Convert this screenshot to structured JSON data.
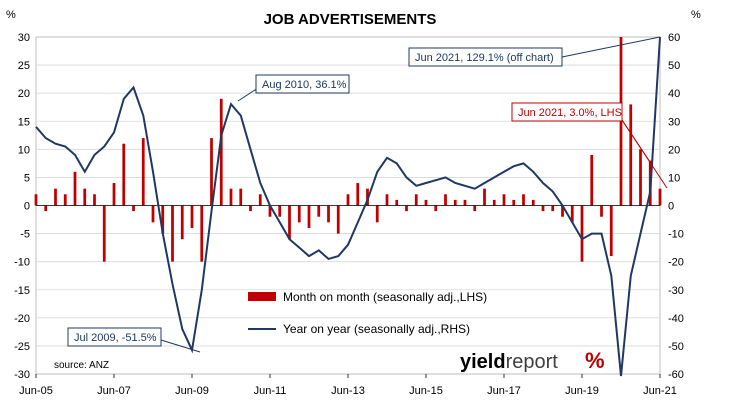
{
  "chart_data": {
    "type": "bar+line",
    "title": "JOB ADVERTISEMENTS",
    "left_axis_unit": "%",
    "right_axis_unit": "%",
    "left_axis": {
      "min": -30,
      "max": 30,
      "ticks": [
        30,
        25,
        20,
        15,
        10,
        5,
        0,
        -5,
        -10,
        -15,
        -20,
        -25,
        -30
      ]
    },
    "right_axis": {
      "min": -60,
      "max": 60,
      "ticks": [
        60,
        50,
        40,
        30,
        20,
        10,
        0,
        -10,
        -20,
        -30,
        -40,
        -50,
        -60
      ]
    },
    "x_axis": {
      "start": "2005-06",
      "end": "2021-06",
      "tick_labels": [
        "Jun-05",
        "Jun-07",
        "Jun-09",
        "Jun-11",
        "Jun-13",
        "Jun-15",
        "Jun-17",
        "Jun-19",
        "Jun-21"
      ]
    },
    "series": [
      {
        "name": "Month on month (seasonally adj.,LHS)",
        "kind": "bar",
        "axis": "left",
        "color": "#c00000"
      },
      {
        "name": "Year on year (seasonally adj.,RHS)",
        "kind": "line",
        "axis": "right",
        "color": "#1f3864"
      }
    ],
    "mom_points": [
      [
        "2005-06",
        2
      ],
      [
        "2005-09",
        -1
      ],
      [
        "2005-12",
        3
      ],
      [
        "2006-03",
        2
      ],
      [
        "2006-06",
        6
      ],
      [
        "2006-09",
        3
      ],
      [
        "2006-12",
        2
      ],
      [
        "2007-03",
        -10
      ],
      [
        "2007-06",
        4
      ],
      [
        "2007-09",
        11
      ],
      [
        "2007-12",
        -1
      ],
      [
        "2008-03",
        12
      ],
      [
        "2008-06",
        -3
      ],
      [
        "2008-09",
        -5
      ],
      [
        "2008-12",
        -10
      ],
      [
        "2009-03",
        -6
      ],
      [
        "2009-06",
        -4
      ],
      [
        "2009-09",
        -10
      ],
      [
        "2009-12",
        12
      ],
      [
        "2010-03",
        19
      ],
      [
        "2010-06",
        3
      ],
      [
        "2010-09",
        3
      ],
      [
        "2010-12",
        -1
      ],
      [
        "2011-03",
        2
      ],
      [
        "2011-06",
        -2
      ],
      [
        "2011-09",
        -2
      ],
      [
        "2011-12",
        -6
      ],
      [
        "2012-03",
        -3
      ],
      [
        "2012-06",
        -4
      ],
      [
        "2012-09",
        -2
      ],
      [
        "2012-12",
        -3
      ],
      [
        "2013-03",
        -5
      ],
      [
        "2013-06",
        2
      ],
      [
        "2013-09",
        4
      ],
      [
        "2013-12",
        3
      ],
      [
        "2014-03",
        -3
      ],
      [
        "2014-06",
        2
      ],
      [
        "2014-09",
        1
      ],
      [
        "2014-12",
        -1
      ],
      [
        "2015-03",
        2
      ],
      [
        "2015-06",
        1
      ],
      [
        "2015-09",
        -1
      ],
      [
        "2015-12",
        2
      ],
      [
        "2016-03",
        1
      ],
      [
        "2016-06",
        1
      ],
      [
        "2016-09",
        -1
      ],
      [
        "2016-12",
        3
      ],
      [
        "2017-03",
        1
      ],
      [
        "2017-06",
        2
      ],
      [
        "2017-09",
        1
      ],
      [
        "2017-12",
        2
      ],
      [
        "2018-03",
        1
      ],
      [
        "2018-06",
        -1
      ],
      [
        "2018-09",
        -1
      ],
      [
        "2018-12",
        -2
      ],
      [
        "2019-03",
        -3
      ],
      [
        "2019-06",
        -10
      ],
      [
        "2019-09",
        9
      ],
      [
        "2019-12",
        -2
      ],
      [
        "2020-03",
        -9
      ],
      [
        "2020-06",
        30
      ],
      [
        "2020-09",
        18
      ],
      [
        "2020-12",
        10
      ],
      [
        "2021-03",
        8
      ],
      [
        "2021-06",
        3
      ]
    ],
    "yoy_points": [
      [
        "2005-06",
        28
      ],
      [
        "2005-09",
        24
      ],
      [
        "2005-12",
        22
      ],
      [
        "2006-03",
        21
      ],
      [
        "2006-06",
        18
      ],
      [
        "2006-09",
        12
      ],
      [
        "2006-12",
        18
      ],
      [
        "2007-03",
        21
      ],
      [
        "2007-06",
        26
      ],
      [
        "2007-09",
        38
      ],
      [
        "2007-12",
        42
      ],
      [
        "2008-03",
        32
      ],
      [
        "2008-06",
        12
      ],
      [
        "2008-09",
        -10
      ],
      [
        "2008-12",
        -28
      ],
      [
        "2009-03",
        -44
      ],
      [
        "2009-06",
        -51.5
      ],
      [
        "2009-09",
        -30
      ],
      [
        "2009-12",
        -2
      ],
      [
        "2010-03",
        25
      ],
      [
        "2010-06",
        36.1
      ],
      [
        "2010-09",
        32
      ],
      [
        "2010-12",
        20
      ],
      [
        "2011-03",
        8
      ],
      [
        "2011-06",
        0
      ],
      [
        "2011-09",
        -6
      ],
      [
        "2011-12",
        -12
      ],
      [
        "2012-03",
        -15
      ],
      [
        "2012-06",
        -18
      ],
      [
        "2012-09",
        -16
      ],
      [
        "2012-12",
        -19
      ],
      [
        "2013-03",
        -18
      ],
      [
        "2013-06",
        -14
      ],
      [
        "2013-09",
        -6
      ],
      [
        "2013-12",
        2
      ],
      [
        "2014-03",
        12
      ],
      [
        "2014-06",
        17
      ],
      [
        "2014-09",
        15
      ],
      [
        "2014-12",
        10
      ],
      [
        "2015-03",
        7
      ],
      [
        "2015-06",
        8
      ],
      [
        "2015-09",
        9
      ],
      [
        "2015-12",
        10
      ],
      [
        "2016-03",
        8
      ],
      [
        "2016-06",
        7
      ],
      [
        "2016-09",
        6
      ],
      [
        "2016-12",
        8
      ],
      [
        "2017-03",
        10
      ],
      [
        "2017-06",
        12
      ],
      [
        "2017-09",
        14
      ],
      [
        "2017-12",
        15
      ],
      [
        "2018-03",
        12
      ],
      [
        "2018-06",
        8
      ],
      [
        "2018-09",
        5
      ],
      [
        "2018-12",
        0
      ],
      [
        "2019-03",
        -6
      ],
      [
        "2019-06",
        -12
      ],
      [
        "2019-09",
        -10
      ],
      [
        "2019-12",
        -10
      ],
      [
        "2020-03",
        -25
      ],
      [
        "2020-06",
        -85
      ],
      [
        "2020-09",
        -25
      ],
      [
        "2020-12",
        -10
      ],
      [
        "2021-03",
        5
      ],
      [
        "2021-06",
        60
      ]
    ],
    "annotations": [
      {
        "text": "Jun 2021, 129.1% (off chart)",
        "color": "#1f3864"
      },
      {
        "text": "Aug 2010, 36.1%",
        "color": "#1f3864"
      },
      {
        "text": "Jun 2021, 3.0%, LHS",
        "color": "#c00000"
      },
      {
        "text": "Jul 2009, -51.5%",
        "color": "#1f3864"
      }
    ],
    "legend": {
      "placement": "bottom-center"
    },
    "source": "source: ANZ",
    "logo": {
      "word_a": "yield",
      "word_b": "report",
      "glyph": "%"
    }
  }
}
